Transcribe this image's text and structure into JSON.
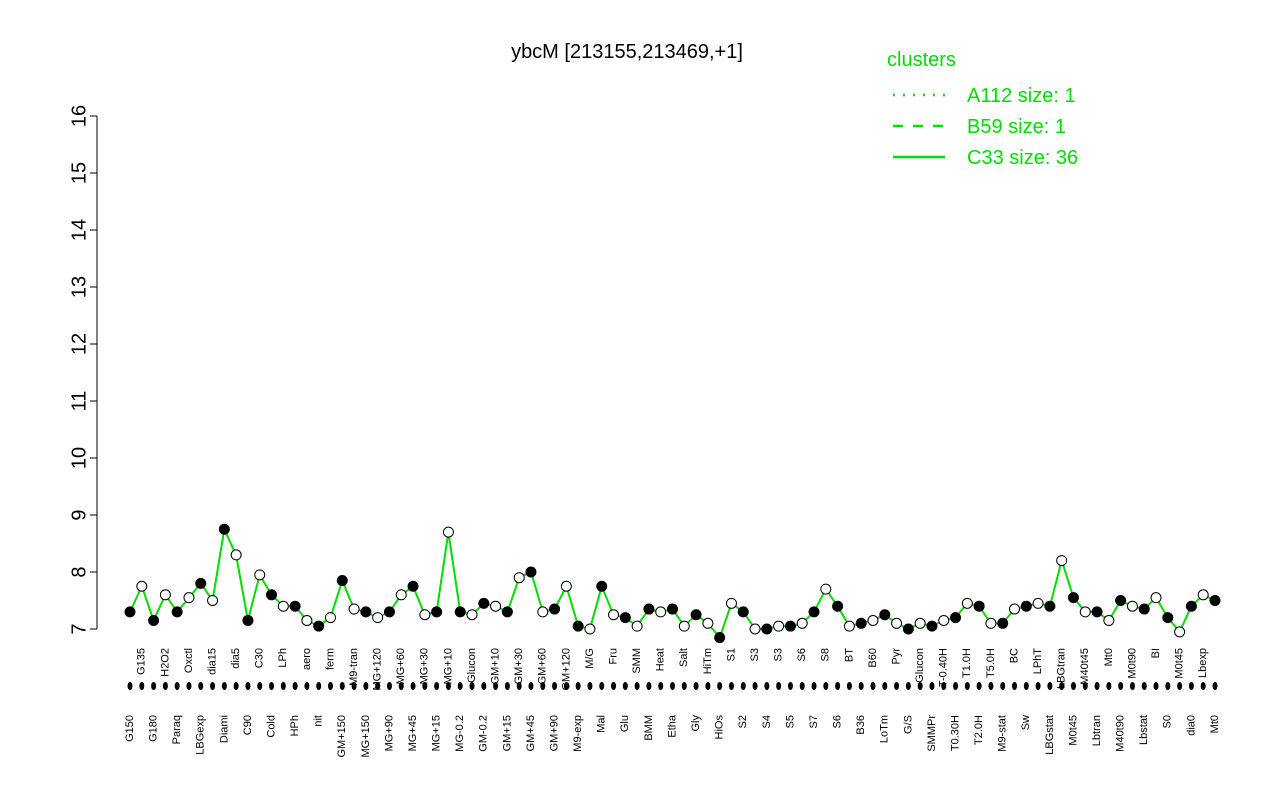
{
  "chart_data": {
    "type": "line",
    "title": "ybcM [213155,213469,+1]",
    "legend_title": "clusters",
    "legend_color": "#00dd00",
    "legend_entries": [
      {
        "name": "A112 size: 1",
        "dash": "dotted"
      },
      {
        "name": "B59 size: 1",
        "dash": "dashed"
      },
      {
        "name": "C33 size: 36",
        "dash": "solid"
      }
    ],
    "ylim": [
      7,
      16
    ],
    "yticks": [
      7,
      8,
      9,
      10,
      11,
      12,
      13,
      14,
      15,
      16
    ],
    "categories": [
      "G150",
      "G135",
      "G180",
      "H2O2",
      "Paraq",
      "Oxctl",
      "LBGexp",
      "dia15",
      "Diami",
      "dia5",
      "C90",
      "C30",
      "Cold",
      "LPh",
      "HPh",
      "aero",
      "nit",
      "ferm",
      "GM+150",
      "M9-tran",
      "MG+150",
      "MG+120",
      "MG+90",
      "MG+60",
      "MG+45",
      "MG+30",
      "MG+15",
      "MG+10",
      "MG-0.2",
      "Glucon",
      "GM-0.2",
      "GM+10",
      "GM+15",
      "GM+30",
      "GM+45",
      "GM+60",
      "GM+90",
      "GM+120",
      "M9-exp",
      "M/G",
      "Mal",
      "Fru",
      "Glu",
      "SMM",
      "BMM",
      "Heat",
      "Etha",
      "Salt",
      "Gly",
      "HiTm",
      "HiOs",
      "S1",
      "S2",
      "S3",
      "S4",
      "S3",
      "S5",
      "S6",
      "S7",
      "S8",
      "S6",
      "BT",
      "B36",
      "B60",
      "LoTm",
      "Pyr",
      "G/S",
      "Glucon",
      "SMMPr",
      "T-0.40H",
      "T0.30H",
      "T1.0H",
      "T2.0H",
      "T5.0H",
      "M9-stat",
      "BC",
      "Sw",
      "LPhT",
      "LBGstat",
      "LBGtran",
      "M0t45",
      "M40t45",
      "Lbtran",
      "Mt0",
      "M40t90",
      "M0t90",
      "Lbstat",
      "BI",
      "S0",
      "M0t45",
      "dia0",
      "Lbexp",
      "Mt0"
    ],
    "series": [
      {
        "name": "C33 size: 36",
        "color": "#00dd00",
        "values": [
          7.3,
          7.75,
          7.15,
          7.6,
          7.3,
          7.55,
          7.8,
          7.5,
          8.75,
          8.3,
          7.15,
          7.95,
          7.6,
          7.4,
          7.4,
          7.15,
          7.05,
          7.2,
          7.85,
          7.35,
          7.3,
          7.2,
          7.3,
          7.6,
          7.75,
          7.25,
          7.3,
          8.7,
          7.3,
          7.25,
          7.45,
          7.4,
          7.3,
          7.9,
          8.0,
          7.3,
          7.35,
          7.75,
          7.05,
          7.0,
          7.75,
          7.25,
          7.2,
          7.05,
          7.35,
          7.3,
          7.35,
          7.05,
          7.25,
          7.1,
          6.85,
          7.45,
          7.3,
          7.0,
          7.0,
          7.05,
          7.05,
          7.1,
          7.3,
          7.7,
          7.4,
          7.05,
          7.1,
          7.15,
          7.25,
          7.1,
          7.0,
          7.1,
          7.05,
          7.15,
          7.2,
          7.45,
          7.4,
          7.1,
          7.1,
          7.35,
          7.4,
          7.45,
          7.4,
          8.2,
          7.55,
          7.3,
          7.3,
          7.15,
          7.5,
          7.4,
          7.35,
          7.55,
          7.2,
          6.95,
          7.4,
          7.6,
          7.5
        ]
      }
    ],
    "point_color": "#000000",
    "rug": true
  }
}
